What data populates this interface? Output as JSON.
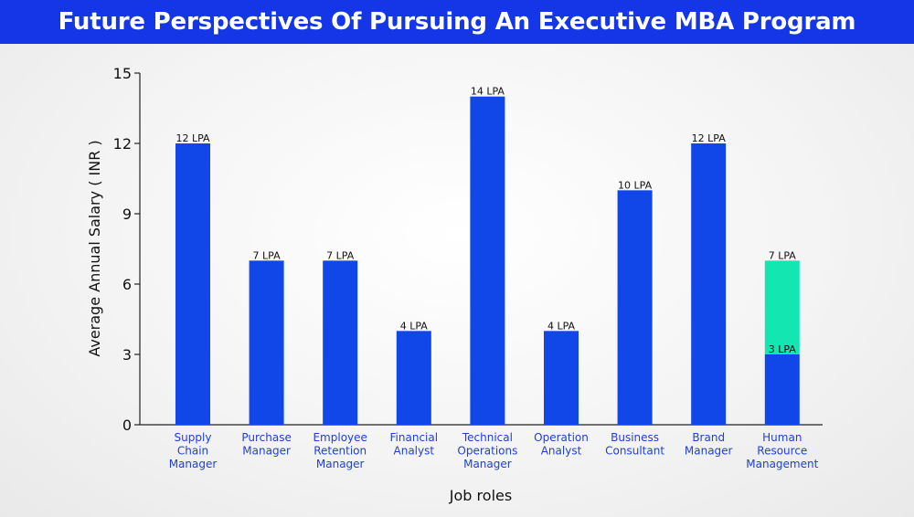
{
  "title": "Future Perspectives Of Pursuing An Executive MBA Program",
  "colors": {
    "banner": "#1436e6",
    "bar_primary": "#1146e8",
    "bar_secondary": "#14e6b2",
    "category_text": "#1f3fd6"
  },
  "chart_data": {
    "type": "bar",
    "stacked": true,
    "categories": [
      [
        "Supply",
        "Chain",
        "Manager"
      ],
      [
        "Purchase",
        "Manager"
      ],
      [
        "Employee",
        "Retention",
        "Manager"
      ],
      [
        "Financial",
        "Analyst"
      ],
      [
        "Technical",
        "Operations",
        "Manager"
      ],
      [
        "Operation",
        "Analyst"
      ],
      [
        "Business",
        "Consultant"
      ],
      [
        "Brand",
        "Manager"
      ],
      [
        "Human",
        "Resource",
        "Management"
      ]
    ],
    "series": [
      {
        "values": [
          12,
          7,
          7,
          4,
          14,
          4,
          10,
          12,
          3
        ],
        "labels": [
          "12 LPA",
          "7 LPA",
          "7 LPA",
          "4 LPA",
          "14 LPA",
          "4 LPA",
          "10 LPA",
          "12 LPA",
          "3 LPA"
        ],
        "color": "#1146e8"
      },
      {
        "values": [
          0,
          0,
          0,
          0,
          0,
          0,
          0,
          0,
          4
        ],
        "labels": [
          "",
          "",
          "",
          "",
          "",
          "",
          "",
          "",
          "7 LPA"
        ],
        "color": "#14e6b2"
      }
    ],
    "xlabel": "Job roles",
    "ylabel": "Average Annual Salary ( INR )",
    "ylim": [
      0,
      15
    ],
    "yticks": [
      0,
      3,
      6,
      9,
      12,
      15
    ],
    "grid": false,
    "legend": "none"
  }
}
